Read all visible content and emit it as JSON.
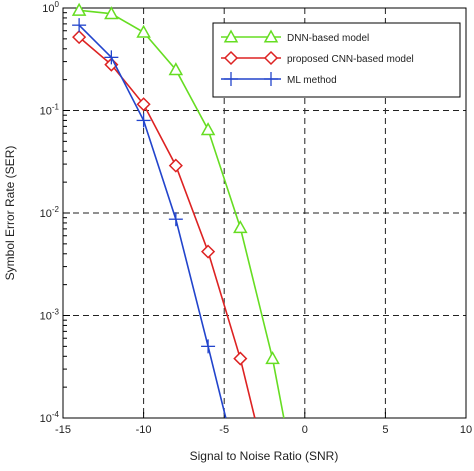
{
  "colors": {
    "dnn": "#66dd22",
    "cnn": "#dd2222",
    "ml": "#2244cc",
    "grid": "#222222",
    "axis": "#000000"
  },
  "chart_data": {
    "type": "line",
    "title": "",
    "xlabel": "Signal to Noise Ratio (SNR)",
    "ylabel": "Symbol Error Rate (SER)",
    "xlim": [
      -15,
      10
    ],
    "ylim": [
      0.0001,
      1
    ],
    "yscale": "log",
    "grid": true,
    "legend_position": "top-right",
    "x_ticks": [
      -15,
      -10,
      -5,
      0,
      5,
      10
    ],
    "x_tick_labels": [
      "-15",
      "-10",
      "-5",
      "0",
      "5",
      "10"
    ],
    "y_ticks": [
      {
        "value": 1,
        "base": "10",
        "exp": "0"
      },
      {
        "value": 0.1,
        "base": "10",
        "exp": "-1"
      },
      {
        "value": 0.01,
        "base": "10",
        "exp": "-2"
      },
      {
        "value": 0.001,
        "base": "10",
        "exp": "-3"
      },
      {
        "value": 0.0001,
        "base": "10",
        "exp": "-4"
      }
    ],
    "series": [
      {
        "name": "DNN-based model",
        "marker": "triangle",
        "color": "#66dd22",
        "x": [
          -14,
          -12,
          -10,
          -8,
          -6,
          -4,
          -2,
          -1.3
        ],
        "y": [
          0.95,
          0.88,
          0.58,
          0.25,
          0.065,
          0.0072,
          0.00038,
          0.0001
        ]
      },
      {
        "name": "proposed CNN-based model",
        "marker": "diamond",
        "color": "#dd2222",
        "x": [
          -14,
          -12,
          -10,
          -8,
          -6,
          -4,
          -3.1
        ],
        "y": [
          0.52,
          0.28,
          0.115,
          0.029,
          0.0042,
          0.00038,
          0.0001
        ]
      },
      {
        "name": "ML method",
        "marker": "plus",
        "color": "#2244cc",
        "x": [
          -14,
          -12,
          -10,
          -8,
          -6,
          -4.9
        ],
        "y": [
          0.68,
          0.33,
          0.08,
          0.0087,
          0.0005,
          0.0001
        ]
      }
    ]
  }
}
